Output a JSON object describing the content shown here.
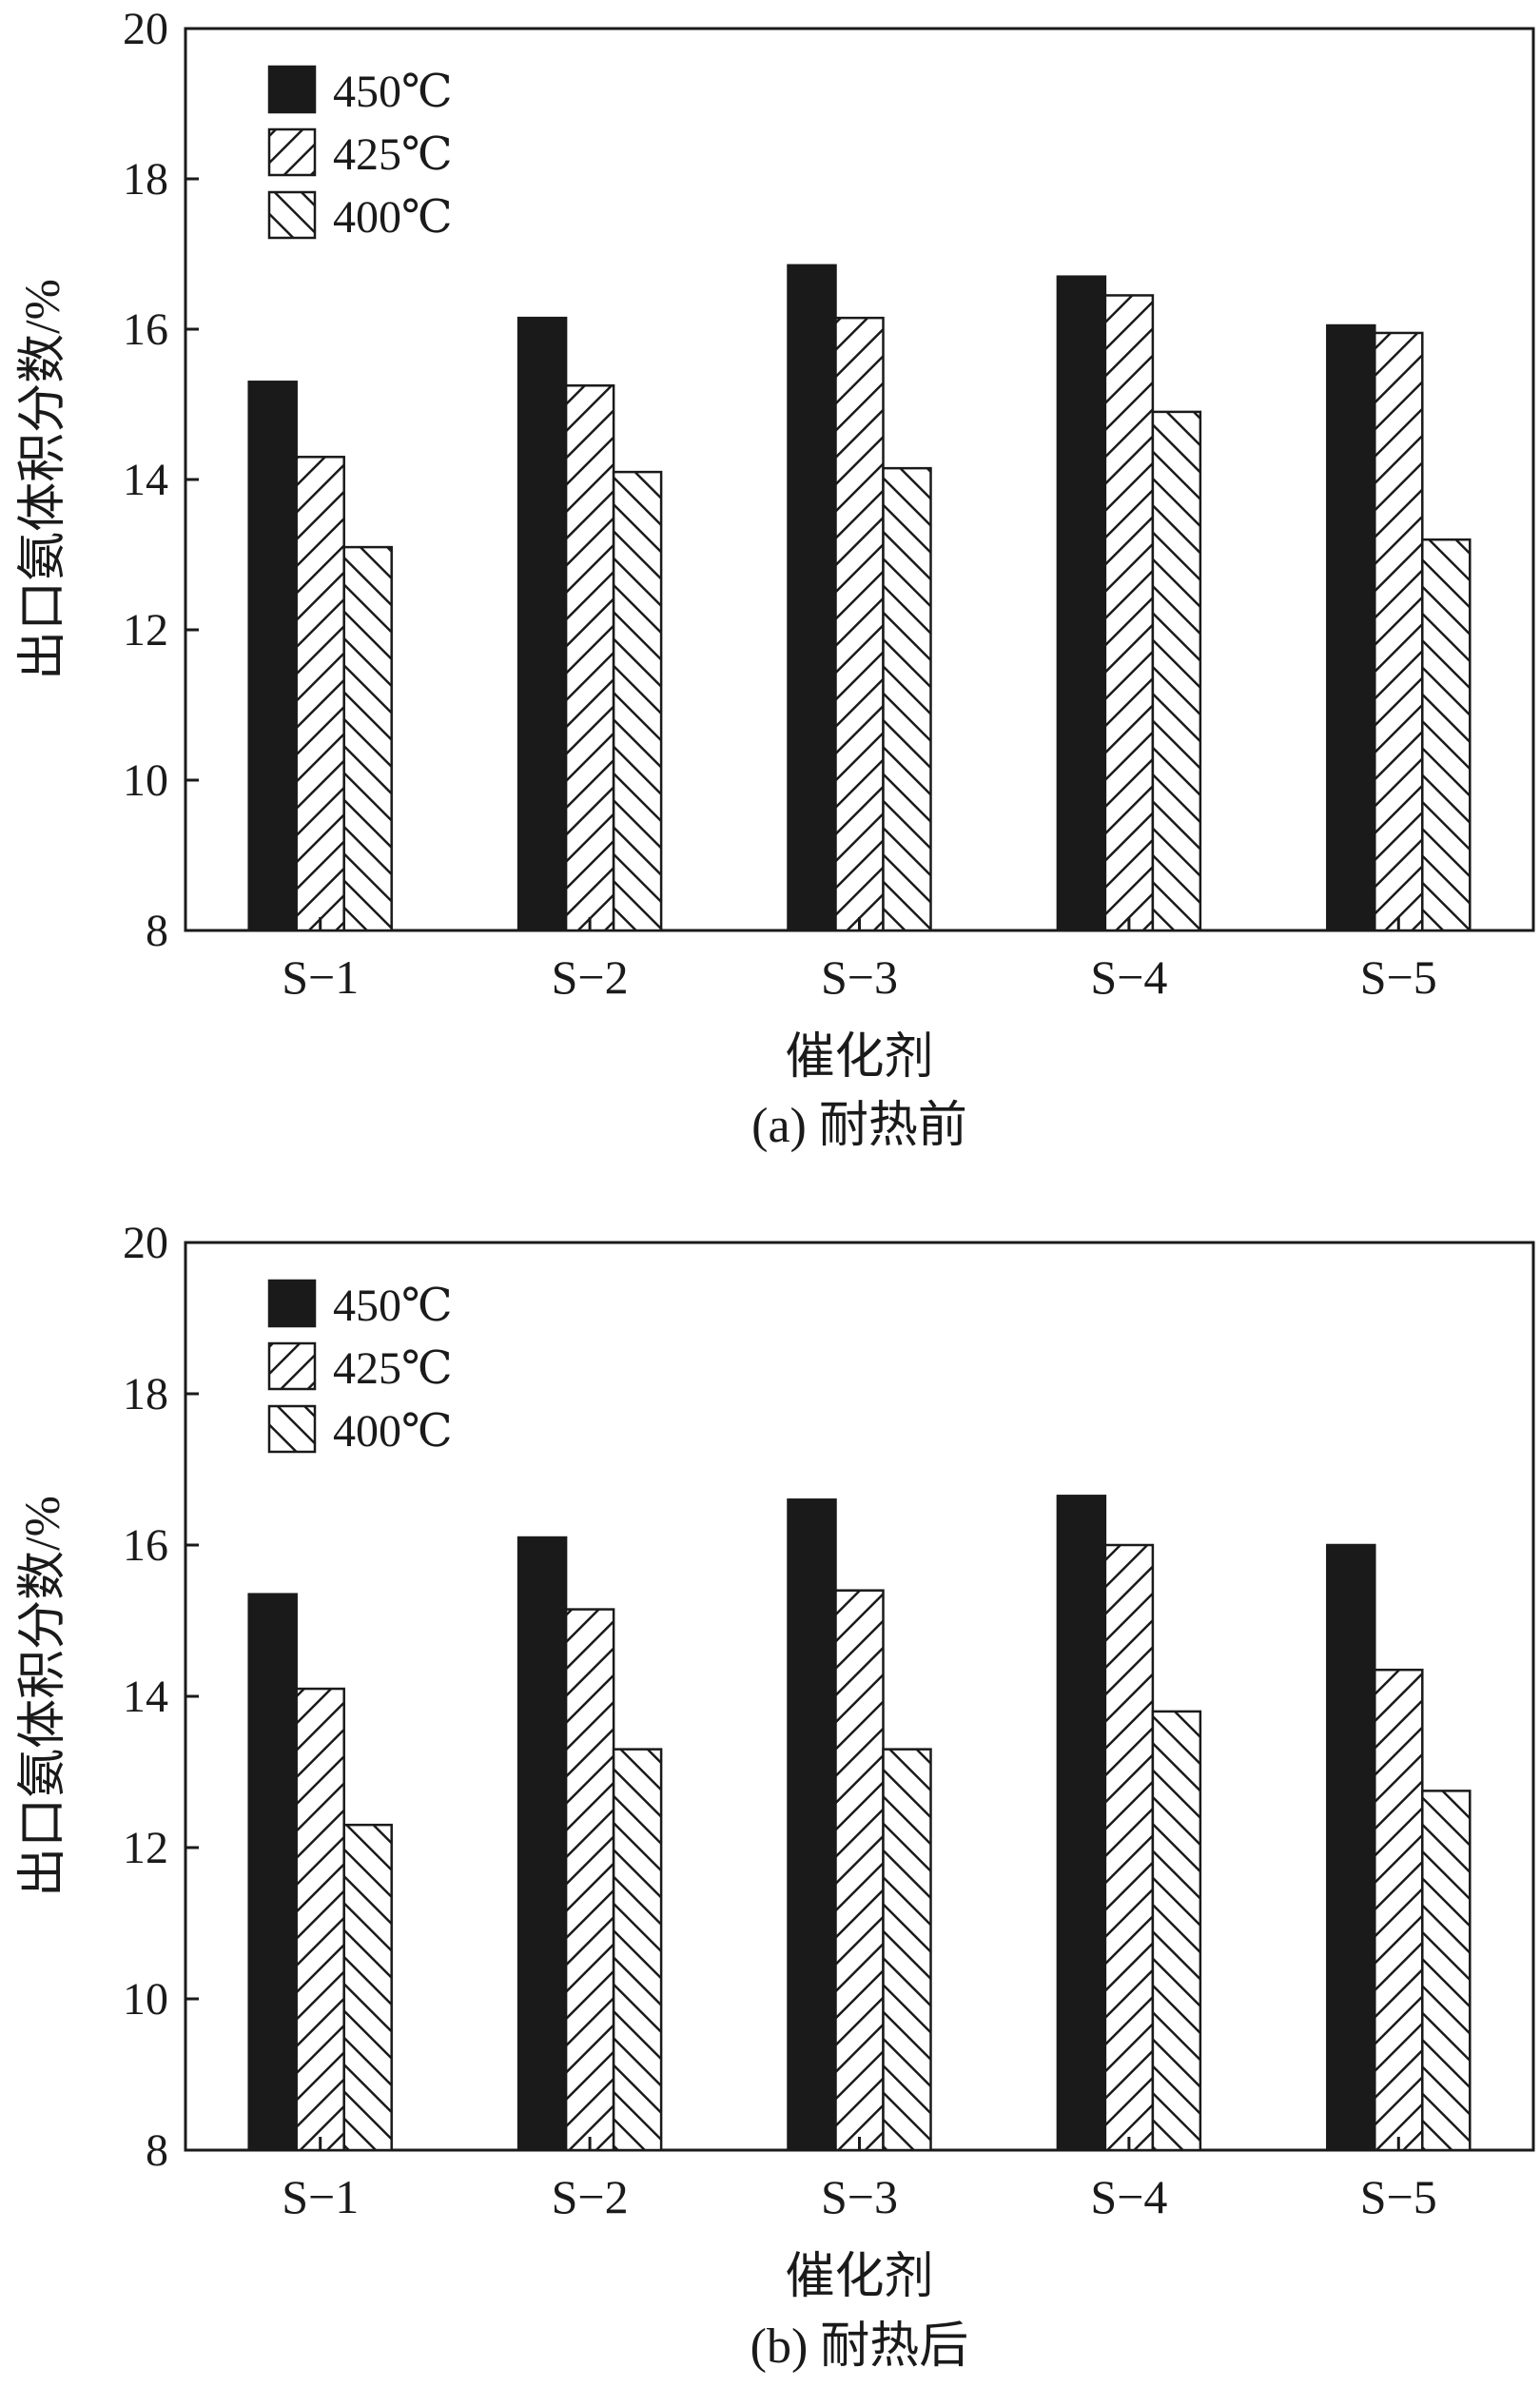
{
  "figure": {
    "colors": {
      "ink": "#1a1a1a",
      "background": "#ffffff"
    }
  },
  "chart_data": [
    {
      "type": "bar",
      "caption": "(a) 耐热前",
      "xlabel": "催化剂",
      "ylabel": "出口氨体积分数/%",
      "ylim": [
        8,
        20
      ],
      "yticks": [
        8,
        10,
        12,
        14,
        16,
        18,
        20
      ],
      "categories": [
        "S−1",
        "S−2",
        "S−3",
        "S−4",
        "S−5"
      ],
      "legend_position": "top-left",
      "series": [
        {
          "name": "450℃",
          "pattern": "solid",
          "values": [
            15.3,
            16.15,
            16.85,
            16.7,
            16.05
          ]
        },
        {
          "name": "425℃",
          "pattern": "hatch-forward",
          "values": [
            14.3,
            15.25,
            16.15,
            16.45,
            15.95
          ]
        },
        {
          "name": "400℃",
          "pattern": "hatch-backward",
          "values": [
            13.1,
            14.1,
            14.15,
            14.9,
            13.2
          ]
        }
      ]
    },
    {
      "type": "bar",
      "caption": "(b) 耐热后",
      "xlabel": "催化剂",
      "ylabel": "出口氨体积分数/%",
      "ylim": [
        8,
        20
      ],
      "yticks": [
        8,
        10,
        12,
        14,
        16,
        18,
        20
      ],
      "categories": [
        "S−1",
        "S−2",
        "S−3",
        "S−4",
        "S−5"
      ],
      "legend_position": "top-left",
      "series": [
        {
          "name": "450℃",
          "pattern": "solid",
          "values": [
            15.35,
            16.1,
            16.6,
            16.65,
            16.0
          ]
        },
        {
          "name": "425℃",
          "pattern": "hatch-forward",
          "values": [
            14.1,
            15.15,
            15.4,
            16.0,
            14.35
          ]
        },
        {
          "name": "400℃",
          "pattern": "hatch-backward",
          "values": [
            12.3,
            13.3,
            13.3,
            13.8,
            12.75
          ]
        }
      ]
    }
  ]
}
